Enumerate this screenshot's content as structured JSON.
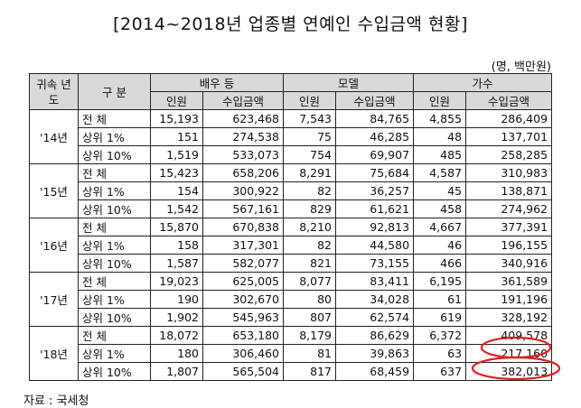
{
  "title": "[2014~2018년 업종별 연예인 수입금액 현황]",
  "unit": "(명, 백만원)",
  "header": {
    "year_col": "귀속 년도",
    "category_col": "구 분",
    "groups": [
      "배우 등",
      "모델",
      "가수"
    ],
    "sub_people": "인원",
    "sub_income": "수입금액"
  },
  "years": [
    {
      "label": "'14년",
      "rows": [
        {
          "label": "전 체",
          "values": [
            "15,193",
            "623,468",
            "7,543",
            "84,765",
            "4,855",
            "286,409"
          ]
        },
        {
          "label": "상위 1%",
          "values": [
            "151",
            "274,538",
            "75",
            "46,285",
            "48",
            "137,701"
          ]
        },
        {
          "label": "상위 10%",
          "values": [
            "1,519",
            "533,073",
            "754",
            "69,907",
            "485",
            "258,285"
          ]
        }
      ]
    },
    {
      "label": "'15년",
      "rows": [
        {
          "label": "전 체",
          "values": [
            "15,423",
            "658,206",
            "8,291",
            "75,684",
            "4,587",
            "310,983"
          ]
        },
        {
          "label": "상위 1%",
          "values": [
            "154",
            "300,922",
            "82",
            "36,257",
            "45",
            "138,871"
          ]
        },
        {
          "label": "상위 10%",
          "values": [
            "1,542",
            "567,161",
            "829",
            "61,621",
            "458",
            "274,962"
          ]
        }
      ]
    },
    {
      "label": "'16년",
      "rows": [
        {
          "label": "전 체",
          "values": [
            "15,870",
            "670,838",
            "8,210",
            "92,813",
            "4,667",
            "377,391"
          ]
        },
        {
          "label": "상위 1%",
          "values": [
            "158",
            "317,301",
            "82",
            "44,580",
            "46",
            "196,155"
          ]
        },
        {
          "label": "상위 10%",
          "values": [
            "1,587",
            "582,077",
            "821",
            "73,155",
            "466",
            "340,916"
          ]
        }
      ]
    },
    {
      "label": "'17년",
      "rows": [
        {
          "label": "전 체",
          "values": [
            "19,023",
            "625,005",
            "8,077",
            "83,411",
            "6,195",
            "361,589"
          ]
        },
        {
          "label": "상위 1%",
          "values": [
            "190",
            "302,670",
            "80",
            "34,028",
            "61",
            "191,196"
          ]
        },
        {
          "label": "상위 10%",
          "values": [
            "1,902",
            "545,963",
            "807",
            "62,574",
            "619",
            "328,192"
          ]
        }
      ]
    },
    {
      "label": "'18년",
      "rows": [
        {
          "label": "전 체",
          "values": [
            "18,072",
            "653,180",
            "8,179",
            "86,629",
            "6,372",
            "409,578"
          ]
        },
        {
          "label": "상위 1%",
          "values": [
            "180",
            "306,460",
            "81",
            "39,863",
            "63",
            "217,160"
          ]
        },
        {
          "label": "상위 10%",
          "values": [
            "1,807",
            "565,504",
            "817",
            "68,459",
            "637",
            "382,013"
          ]
        }
      ]
    }
  ],
  "highlight_color": "#e0201b",
  "footnote": "자료 : 국세청"
}
